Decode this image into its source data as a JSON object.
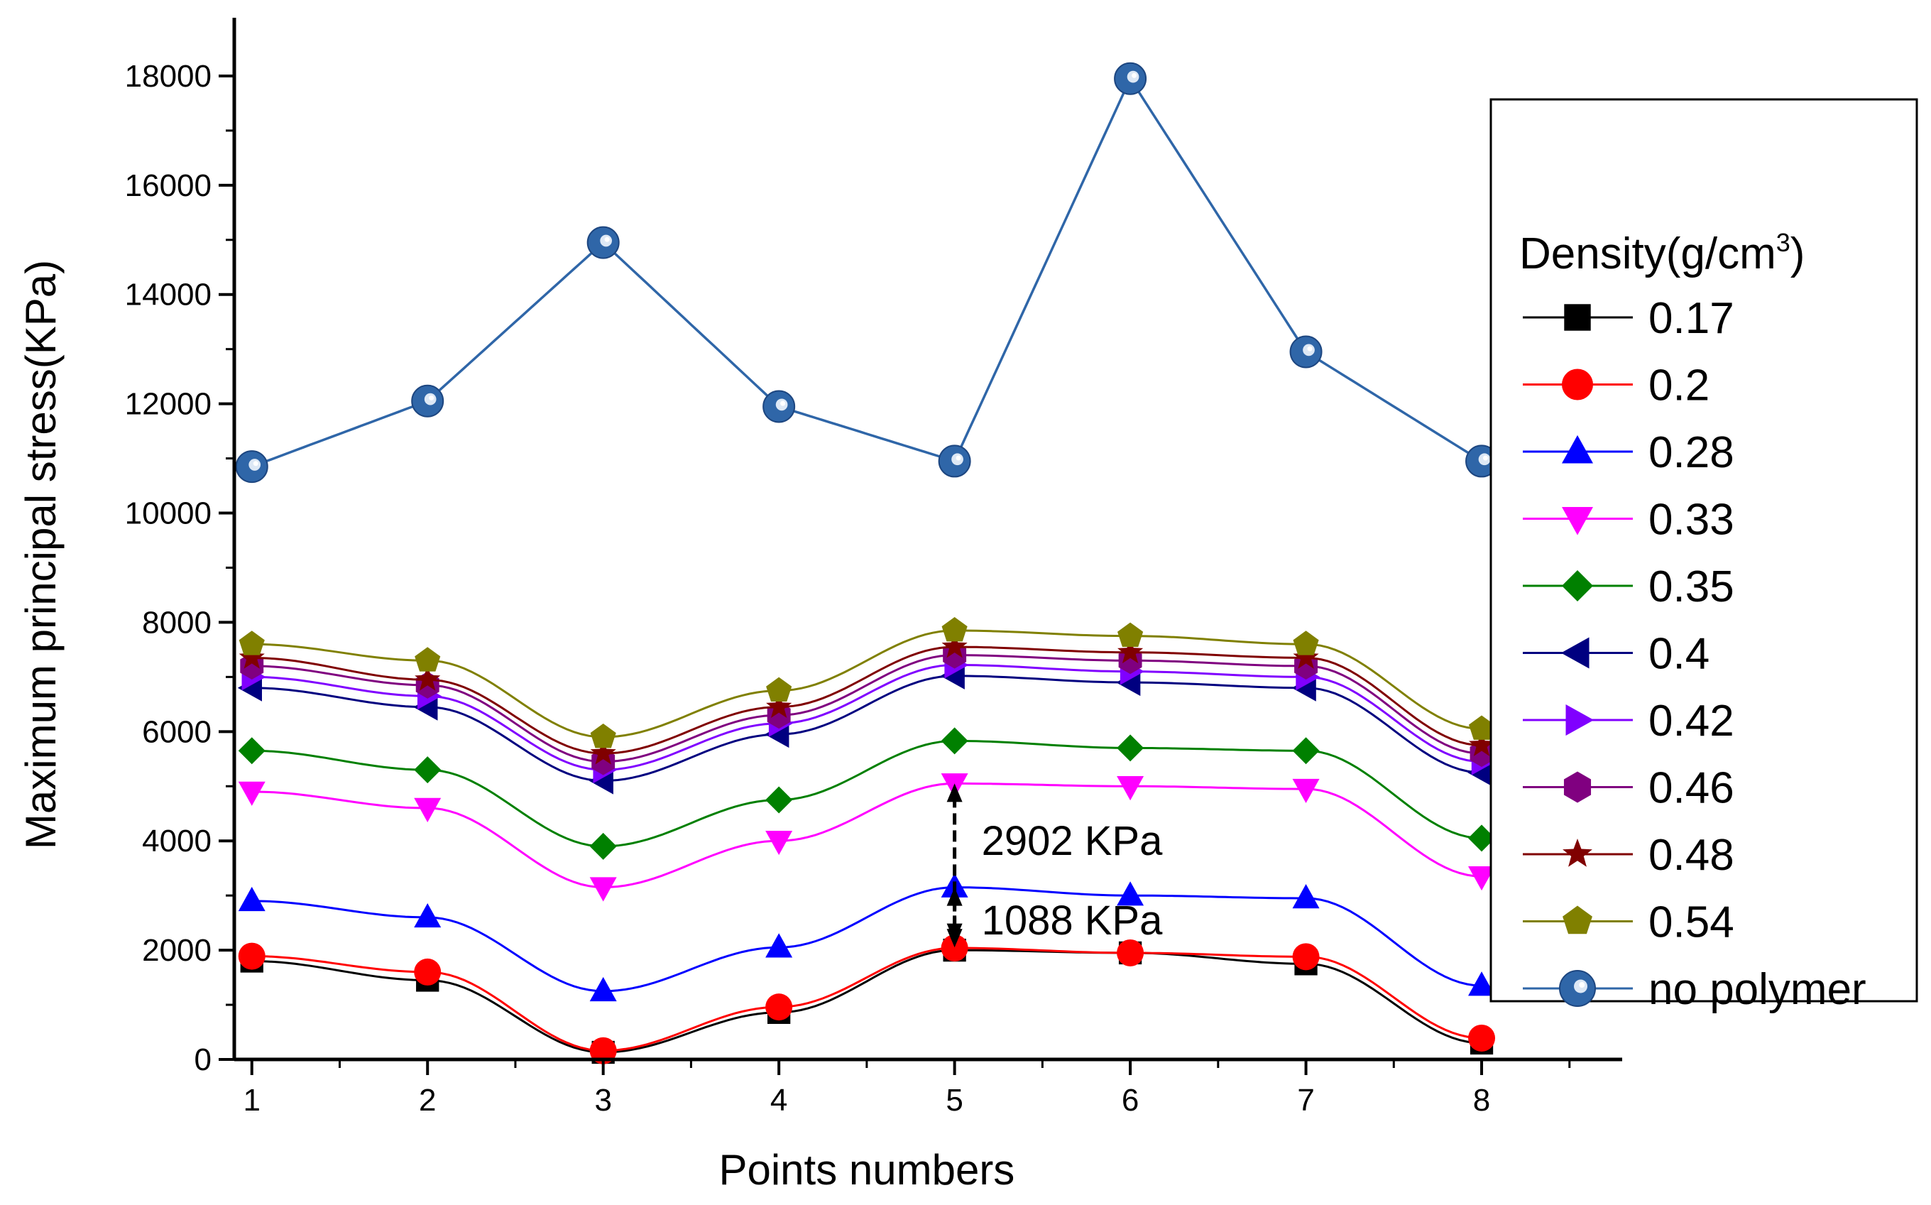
{
  "chart_data": {
    "type": "line",
    "title": "",
    "xlabel": "Points numbers",
    "ylabel": "Maximum principal stress(KPa)",
    "categories": [
      "1",
      "2",
      "3",
      "4",
      "5",
      "6",
      "7",
      "8"
    ],
    "x": [
      1,
      2,
      3,
      4,
      5,
      6,
      7,
      8
    ],
    "xlim": [
      0.9,
      8.8
    ],
    "ylim": [
      0,
      19000
    ],
    "xticks": [
      "1",
      "2",
      "3",
      "4",
      "5",
      "6",
      "7",
      "8"
    ],
    "yticks": [
      "0",
      "2000",
      "4000",
      "6000",
      "8000",
      "10000",
      "12000",
      "14000",
      "16000",
      "18000"
    ],
    "legend": {
      "title_main": "Density(g/cm",
      "title_sup": "3",
      "title_close": ")",
      "position": "right"
    },
    "series": [
      {
        "name": "0.17",
        "color": "#000000",
        "marker": "square",
        "values": [
          1800,
          1450,
          130,
          860,
          2000,
          1950,
          1750,
          300
        ]
      },
      {
        "name": "0.2",
        "color": "#ff0000",
        "marker": "circle",
        "values": [
          1890,
          1600,
          160,
          960,
          2040,
          1950,
          1880,
          390
        ]
      },
      {
        "name": "0.28",
        "color": "#0000ff",
        "marker": "triangle-up",
        "values": [
          2900,
          2600,
          1250,
          2050,
          3150,
          3000,
          2950,
          1350
        ]
      },
      {
        "name": "0.33",
        "color": "#ff00ff",
        "marker": "triangle-down",
        "values": [
          4900,
          4600,
          3150,
          4000,
          5050,
          5000,
          4950,
          3350
        ]
      },
      {
        "name": "0.35",
        "color": "#008000",
        "marker": "diamond",
        "values": [
          5650,
          5300,
          3900,
          4750,
          5830,
          5700,
          5650,
          4050
        ]
      },
      {
        "name": "0.4",
        "color": "#000080",
        "marker": "triangle-left",
        "values": [
          6800,
          6450,
          5100,
          5950,
          7020,
          6900,
          6800,
          5250
        ]
      },
      {
        "name": "0.42",
        "color": "#8000ff",
        "marker": "triangle-right",
        "values": [
          7000,
          6650,
          5300,
          6150,
          7220,
          7100,
          7000,
          5450
        ]
      },
      {
        "name": "0.46",
        "color": "#800080",
        "marker": "hexagon",
        "values": [
          7200,
          6850,
          5450,
          6300,
          7400,
          7300,
          7200,
          5600
        ]
      },
      {
        "name": "0.48",
        "color": "#800000",
        "marker": "star",
        "values": [
          7350,
          6950,
          5600,
          6450,
          7550,
          7450,
          7350,
          5750
        ]
      },
      {
        "name": "0.54",
        "color": "#808000",
        "marker": "pentagon",
        "values": [
          7600,
          7300,
          5900,
          6750,
          7850,
          7750,
          7600,
          6050
        ]
      },
      {
        "name": "no polymer",
        "color": "#2f66a8",
        "marker": "sphere",
        "values": [
          10850,
          12050,
          14950,
          11950,
          10950,
          17950,
          12950,
          10950
        ]
      }
    ],
    "annotations": [
      {
        "text": "2902 KPa",
        "x": 5,
        "y_from": 2150,
        "y_to": 5050
      },
      {
        "text": "1088 KPa",
        "x": 5,
        "y_from": 2050,
        "y_to": 3150
      }
    ]
  }
}
